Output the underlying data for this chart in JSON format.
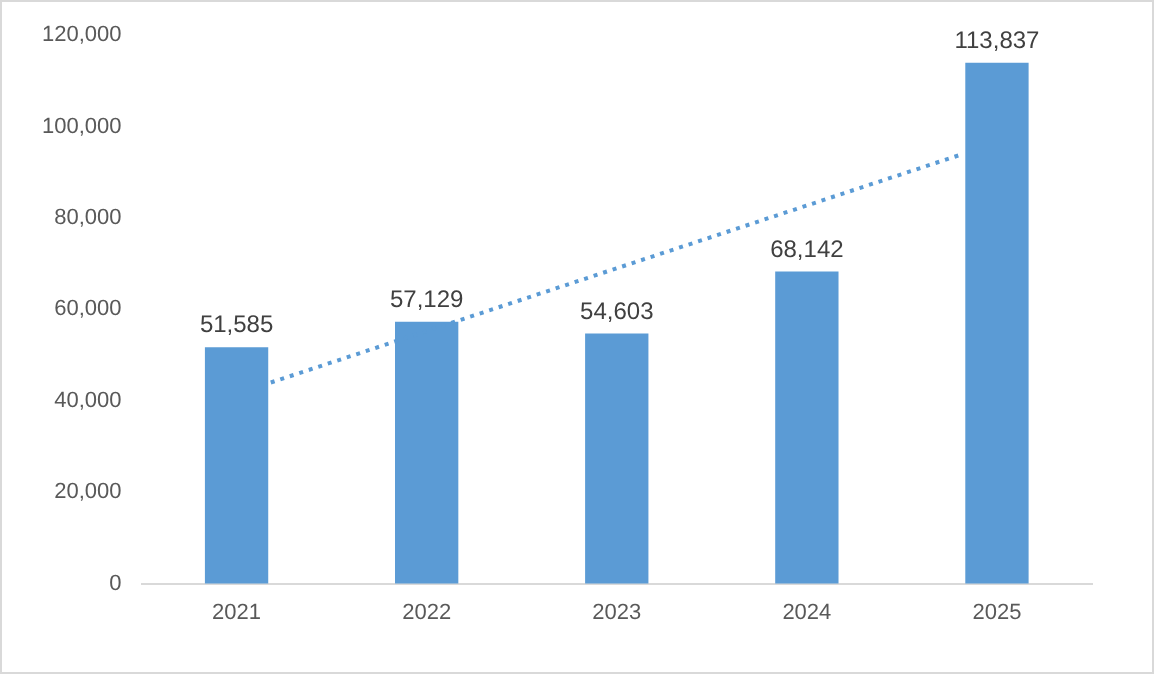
{
  "chart_data": {
    "type": "bar",
    "x": [
      2021,
      2022,
      2023,
      2024,
      2025
    ],
    "xlim": [
      2020.5,
      2025.5
    ],
    "xticks": [
      2021,
      2022,
      2023,
      2024,
      2025
    ],
    "series": [
      {
        "color": "#5b9bd5",
        "values": [
          51585,
          57129,
          54603,
          68142,
          113837
        ],
        "value_labels": [
          "51,585",
          "57,129",
          "54,603",
          "68,142",
          "113,837"
        ]
      },
      {
        "type": "line",
        "color": "#5b9bd5",
        "x": [
          2021.18,
          2024.82
        ],
        "values": [
          44000,
          94000
        ],
        "line_style": "dotted",
        "marker": "none"
      }
    ],
    "ylim": [
      0,
      120000
    ],
    "yticks": [
      {
        "value": 0,
        "label": "0"
      },
      {
        "value": 20000,
        "label": "20,000"
      },
      {
        "value": 40000,
        "label": "40,000"
      },
      {
        "value": 60000,
        "label": "60,000"
      },
      {
        "value": 80000,
        "label": "80,000"
      },
      {
        "value": 100000,
        "label": "100,000"
      },
      {
        "value": 120000,
        "label": "120,000"
      }
    ],
    "grid": false,
    "legend": false
  }
}
